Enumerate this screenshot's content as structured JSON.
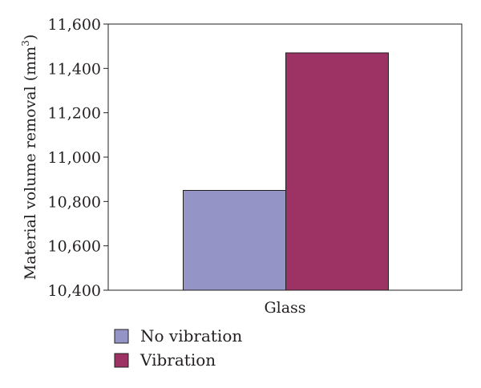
{
  "chart_data": {
    "type": "bar",
    "categories": [
      "Glass"
    ],
    "series": [
      {
        "name": "No vibration",
        "values": [
          10850
        ],
        "color": "#9494c6"
      },
      {
        "name": "Vibration",
        "values": [
          11470
        ],
        "color": "#9c3364"
      }
    ],
    "title": "",
    "xlabel": "",
    "ylabel": "Material volume removal (mm",
    "ylabel_superscript": "3",
    "ylabel_suffix": ")",
    "ylim": [
      10400,
      11600
    ],
    "yticks": [
      10400,
      10600,
      10800,
      11000,
      11200,
      11400,
      11600
    ],
    "ytick_labels": [
      "10,400",
      "10,600",
      "10,800",
      "11,000",
      "11,200",
      "11,400",
      "11,600"
    ],
    "grid": false,
    "legend_position": "bottom-left"
  }
}
